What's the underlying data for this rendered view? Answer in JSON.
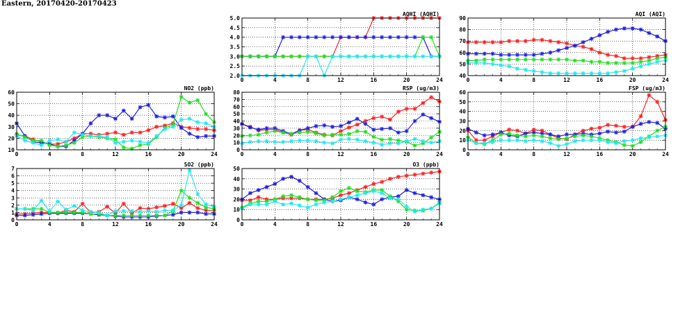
{
  "page_title": "Eastern, 20170420-20170423",
  "colors": {
    "red": "#ff2020",
    "blue": "#2020e0",
    "green": "#20e020",
    "cyan": "#20e8f0"
  },
  "chart_data": [
    {
      "id": "aqhi",
      "type": "line",
      "title": "AQHI (AQHI)",
      "xlim": [
        0,
        24
      ],
      "xticks": [
        0,
        4,
        8,
        12,
        16,
        20,
        24
      ],
      "ylim": [
        2.0,
        5.0
      ],
      "yticks": [
        "2.0",
        "2.5",
        "3.0",
        "3.5",
        "4.0",
        "4.5",
        "5.0"
      ],
      "series": [
        {
          "name": "red",
          "values": [
            3,
            3,
            3,
            3,
            3,
            3,
            3,
            3,
            3,
            3,
            3,
            3,
            4,
            4,
            4,
            4,
            5,
            5,
            5,
            5,
            5,
            5,
            5,
            5,
            5
          ]
        },
        {
          "name": "blue",
          "values": [
            3,
            3,
            3,
            3,
            3,
            4,
            4,
            4,
            4,
            4,
            4,
            4,
            4,
            4,
            4,
            4,
            4,
            4,
            4,
            4,
            4,
            4,
            4,
            3,
            3
          ]
        },
        {
          "name": "green",
          "values": [
            3,
            3,
            3,
            3,
            3,
            3,
            3,
            3,
            3,
            3,
            3,
            3,
            3,
            3,
            3,
            3,
            3,
            3,
            3,
            3,
            3,
            3,
            4,
            4,
            3
          ]
        },
        {
          "name": "cyan",
          "values": [
            2,
            2,
            2,
            2,
            2,
            2,
            2,
            2,
            3,
            3,
            2,
            3,
            3,
            3,
            3,
            3,
            3,
            3,
            3,
            3,
            3,
            3,
            3,
            3,
            3
          ]
        }
      ]
    },
    {
      "id": "aqi",
      "type": "line",
      "title": "AQI (AQI)",
      "xlim": [
        0,
        24
      ],
      "xticks": [
        0,
        4,
        8,
        12,
        16,
        20,
        24
      ],
      "ylim": [
        40,
        90
      ],
      "yticks": [
        40,
        50,
        60,
        70,
        80,
        90
      ],
      "series": [
        {
          "name": "red",
          "values": [
            69,
            69,
            69,
            69,
            69,
            70,
            70,
            70,
            71,
            71,
            70,
            69,
            68,
            66,
            65,
            63,
            60,
            58,
            57,
            55,
            55,
            55,
            56,
            57,
            58
          ]
        },
        {
          "name": "blue",
          "values": [
            59,
            59,
            59,
            59,
            58,
            58,
            58,
            58,
            58,
            59,
            60,
            62,
            64,
            66,
            69,
            72,
            75,
            78,
            80,
            81,
            81,
            80,
            77,
            74,
            70
          ]
        },
        {
          "name": "green",
          "values": [
            53,
            53,
            54,
            54,
            54,
            54,
            54,
            54,
            54,
            54,
            54,
            54,
            54,
            53,
            53,
            52,
            52,
            51,
            51,
            51,
            51,
            52,
            53,
            55,
            56
          ]
        },
        {
          "name": "cyan",
          "values": [
            51,
            51,
            51,
            50,
            49,
            48,
            46,
            45,
            44,
            43,
            42,
            42,
            42,
            42,
            42,
            42,
            42,
            42,
            43,
            44,
            46,
            48,
            50,
            52,
            53
          ]
        }
      ]
    },
    {
      "id": "no2",
      "type": "line",
      "title": "NO2 (ppb)",
      "xlim": [
        0,
        24
      ],
      "xticks": [
        0,
        4,
        8,
        12,
        16,
        20,
        24
      ],
      "ylim": [
        10,
        60
      ],
      "yticks": [
        10,
        20,
        30,
        40,
        50,
        60
      ],
      "series": [
        {
          "name": "red",
          "values": [
            23,
            22,
            19,
            17,
            15,
            15,
            17,
            20,
            24,
            24,
            23,
            24,
            25,
            23,
            25,
            25,
            27,
            30,
            31,
            33,
            30,
            29,
            28,
            28,
            27
          ]
        },
        {
          "name": "blue",
          "values": [
            33,
            22,
            17,
            16,
            15,
            13,
            13,
            18,
            24,
            33,
            40,
            40,
            37,
            44,
            37,
            47,
            49,
            39,
            38,
            39,
            29,
            24,
            21,
            22,
            22
          ]
        },
        {
          "name": "green",
          "values": [
            24,
            21,
            18,
            18,
            14,
            13,
            14,
            16,
            21,
            22,
            21,
            20,
            19,
            12,
            11,
            14,
            15,
            21,
            29,
            32,
            56,
            51,
            53,
            41,
            34
          ]
        },
        {
          "name": "cyan",
          "values": [
            22,
            18,
            16,
            14,
            18,
            19,
            17,
            25,
            23,
            22,
            22,
            21,
            16,
            17,
            18,
            17,
            16,
            22,
            28,
            30,
            36,
            37,
            34,
            33,
            30
          ]
        }
      ]
    },
    {
      "id": "rsp",
      "type": "line",
      "title": "RSP (ug/m3)",
      "xlim": [
        0,
        24
      ],
      "xticks": [
        0,
        4,
        8,
        12,
        16,
        20,
        24
      ],
      "ylim": [
        0,
        80
      ],
      "yticks": [
        0,
        10,
        20,
        30,
        40,
        50,
        60,
        70,
        80
      ],
      "series": [
        {
          "name": "red",
          "values": [
            36,
            32,
            27,
            28,
            28,
            24,
            21,
            27,
            28,
            24,
            21,
            20,
            26,
            31,
            35,
            40,
            44,
            46,
            42,
            53,
            57,
            57,
            65,
            73,
            67
          ]
        },
        {
          "name": "blue",
          "values": [
            36,
            31,
            28,
            30,
            30,
            26,
            22,
            27,
            30,
            33,
            34,
            32,
            33,
            38,
            43,
            36,
            28,
            29,
            30,
            24,
            26,
            40,
            49,
            44,
            39
          ]
        },
        {
          "name": "green",
          "values": [
            19,
            20,
            21,
            24,
            26,
            24,
            22,
            24,
            25,
            23,
            20,
            21,
            21,
            22,
            26,
            25,
            18,
            14,
            15,
            13,
            11,
            6,
            9,
            17,
            25
          ]
        },
        {
          "name": "cyan",
          "values": [
            9,
            11,
            12,
            12,
            11,
            11,
            12,
            13,
            13,
            12,
            10,
            9,
            14,
            15,
            14,
            12,
            10,
            7,
            9,
            9,
            12,
            15,
            12,
            10,
            12
          ]
        }
      ]
    },
    {
      "id": "fsp",
      "type": "line",
      "title": "FSP (ug/m3)",
      "xlim": [
        0,
        24
      ],
      "xticks": [
        0,
        4,
        8,
        12,
        16,
        20,
        24
      ],
      "ylim": [
        0,
        60
      ],
      "yticks": [
        0,
        10,
        20,
        30,
        40,
        50,
        60
      ],
      "series": [
        {
          "name": "red",
          "values": [
            20,
            10,
            10,
            14,
            18,
            21,
            20,
            17,
            21,
            20,
            16,
            12,
            11,
            16,
            20,
            22,
            23,
            26,
            25,
            24,
            24,
            35,
            57,
            50,
            31
          ]
        },
        {
          "name": "blue",
          "values": [
            22,
            18,
            15,
            16,
            18,
            15,
            14,
            17,
            18,
            17,
            16,
            14,
            16,
            16,
            17,
            16,
            17,
            19,
            18,
            19,
            24,
            27,
            29,
            28,
            22
          ]
        },
        {
          "name": "green",
          "values": [
            13,
            7,
            6,
            10,
            16,
            17,
            15,
            14,
            15,
            14,
            12,
            11,
            12,
            14,
            15,
            14,
            12,
            10,
            8,
            5,
            4,
            8,
            14,
            20,
            24
          ]
        },
        {
          "name": "cyan",
          "values": [
            10,
            7,
            7,
            8,
            10,
            10,
            10,
            9,
            10,
            9,
            7,
            4,
            6,
            9,
            10,
            10,
            10,
            8,
            7,
            9,
            10,
            12,
            13,
            14,
            15
          ]
        }
      ]
    },
    {
      "id": "so2",
      "type": "line",
      "title": "SO2 (ppb)",
      "xlim": [
        0,
        24
      ],
      "xticks": [
        0,
        4,
        8,
        12,
        16,
        20,
        24
      ],
      "ylim": [
        0,
        7
      ],
      "yticks": [
        0,
        1,
        2,
        3,
        4,
        5,
        6,
        7
      ],
      "series": [
        {
          "name": "red",
          "values": [
            0.8,
            0.8,
            0.9,
            1.0,
            1.0,
            0.9,
            1.3,
            1.1,
            2.2,
            1.0,
            1.1,
            1.8,
            0.9,
            2.2,
            0.9,
            1.6,
            1.5,
            1.7,
            1.9,
            2.2,
            1.6,
            2.3,
            1.6,
            1.3,
            1.3
          ]
        },
        {
          "name": "blue",
          "values": [
            0.6,
            0.6,
            0.7,
            0.8,
            0.9,
            0.9,
            0.9,
            0.9,
            0.9,
            0.8,
            0.7,
            0.6,
            0.5,
            0.4,
            0.4,
            0.4,
            0.4,
            0.5,
            0.6,
            0.7,
            1.0,
            1.0,
            1.0,
            0.8,
            0.8
          ]
        },
        {
          "name": "green",
          "values": [
            1.5,
            1.5,
            1.5,
            1.5,
            1.0,
            1.0,
            1.0,
            1.0,
            1.0,
            0.8,
            0.8,
            0.6,
            0.6,
            0.6,
            0.6,
            0.6,
            0.6,
            0.6,
            0.6,
            1.2,
            4.0,
            3.0,
            2.3,
            1.7,
            1.5
          ]
        },
        {
          "name": "cyan",
          "values": [
            1.5,
            1.5,
            1.3,
            2.6,
            1.2,
            2.5,
            1.4,
            1.9,
            1.3,
            1.1,
            1.0,
            0.6,
            1.2,
            1.2,
            1.2,
            1.1,
            1.2,
            1.1,
            1.3,
            1.3,
            2.0,
            6.8,
            3.5,
            2.1,
            1.8
          ]
        }
      ]
    },
    {
      "id": "o3",
      "type": "line",
      "title": "O3 (ppb)",
      "xlim": [
        0,
        24
      ],
      "xticks": [
        0,
        4,
        8,
        12,
        16,
        20,
        24
      ],
      "ylim": [
        0,
        50
      ],
      "yticks": [
        0,
        10,
        20,
        30,
        40,
        50
      ],
      "series": [
        {
          "name": "red",
          "values": [
            19,
            19,
            22,
            20,
            20,
            21,
            21,
            21,
            20,
            20,
            20,
            21,
            24,
            26,
            29,
            32,
            35,
            37,
            40,
            42,
            43,
            44,
            45,
            46,
            47
          ]
        },
        {
          "name": "blue",
          "values": [
            20,
            26,
            29,
            32,
            35,
            40,
            42,
            38,
            32,
            26,
            20,
            18,
            19,
            22,
            20,
            17,
            15,
            20,
            22,
            23,
            29,
            26,
            24,
            22,
            20
          ]
        },
        {
          "name": "green",
          "values": [
            12,
            16,
            18,
            18,
            20,
            23,
            24,
            22,
            20,
            19,
            19,
            22,
            28,
            31,
            28,
            27,
            29,
            29,
            23,
            18,
            10,
            9,
            9,
            11,
            17
          ]
        },
        {
          "name": "cyan",
          "values": [
            11,
            15,
            15,
            15,
            18,
            15,
            16,
            14,
            12,
            15,
            17,
            18,
            20,
            22,
            24,
            26,
            28,
            26,
            21,
            20,
            13,
            8,
            10,
            11,
            16
          ]
        }
      ]
    }
  ]
}
